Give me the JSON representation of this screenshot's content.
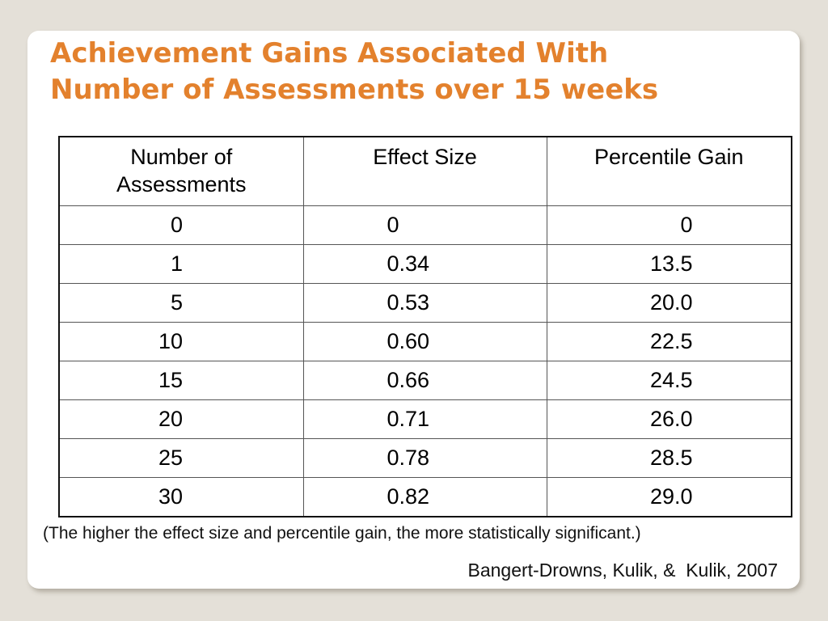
{
  "title_lines": [
    "Achievement Gains Associated With",
    "Number of Assessments over 15 weeks"
  ],
  "colors": {
    "title": "#e3812d",
    "background": "#e4e0d8",
    "slide": "#ffffff"
  },
  "table": {
    "headers": [
      [
        "Number of",
        "Assessments"
      ],
      [
        "Effect Size"
      ],
      [
        "Percentile Gain"
      ]
    ],
    "rows": [
      [
        "0",
        "0",
        "0"
      ],
      [
        "1",
        "0.34",
        "13.5"
      ],
      [
        "5",
        "0.53",
        "20.0"
      ],
      [
        "10",
        "0.60",
        "22.5"
      ],
      [
        "15",
        "0.66",
        "24.5"
      ],
      [
        "20",
        "0.71",
        "26.0"
      ],
      [
        "25",
        "0.78",
        "28.5"
      ],
      [
        "30",
        "0.82",
        "29.0"
      ]
    ]
  },
  "note": "(The higher the effect size and percentile gain, the more statistically significant.)",
  "citation": "Bangert-Drowns, Kulik, &  Kulik, 2007"
}
